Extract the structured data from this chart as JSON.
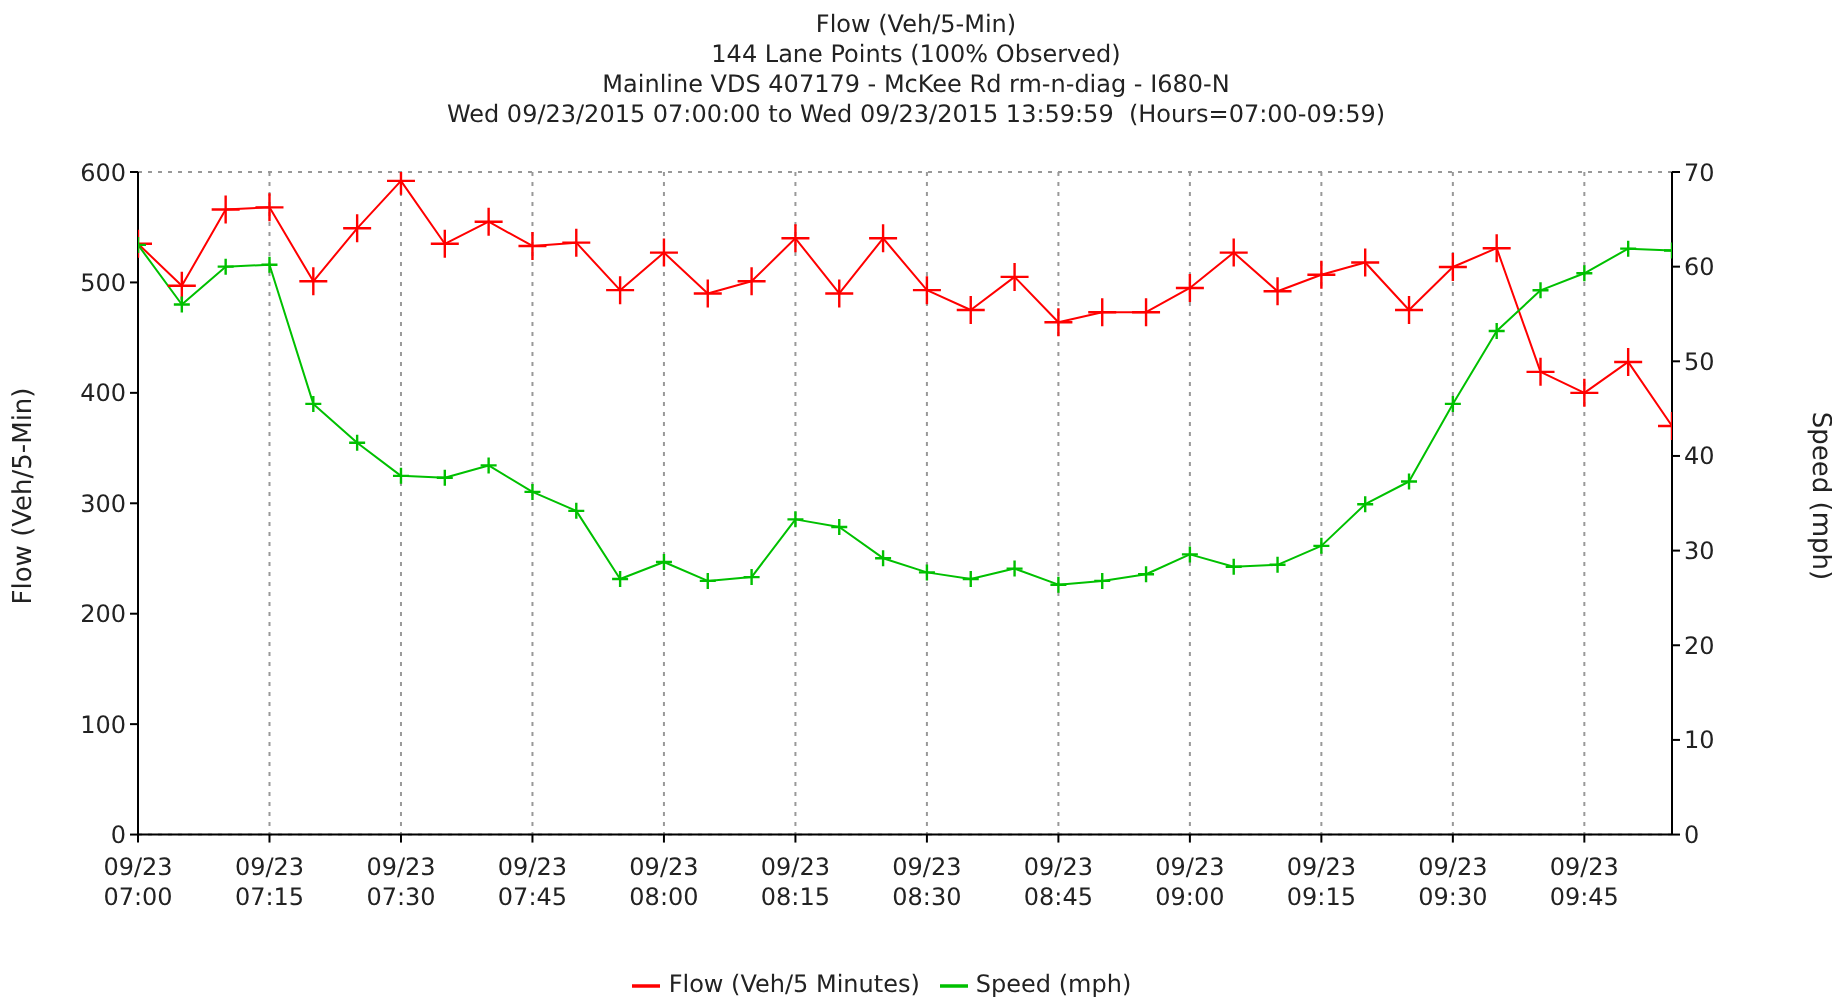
{
  "chart_data": {
    "type": "line",
    "title": "Flow (Veh/5-Min)",
    "subtitle": "144 Lane Points (100% Observed)\nMainline VDS 407179 - McKee Rd rm-n-diag - I680-N\nWed 09/23/2015 07:00:00 to Wed 09/23/2015 13:59:59  (Hours=07:00-09:59)",
    "ylabel": "Flow (Veh/5-Min)",
    "y2label": "Speed (mph)",
    "categories": [
      "09/23 07:00",
      null,
      null,
      "09/23 07:15",
      null,
      null,
      "09/23 07:30",
      null,
      null,
      "09/23 07:45",
      null,
      null,
      "09/23 08:00",
      null,
      null,
      "09/23 08:15",
      null,
      null,
      "09/23 08:30",
      null,
      null,
      "09/23 08:45",
      null,
      null,
      "09/23 09:00",
      null,
      null,
      "09/23 09:15",
      null,
      null,
      "09/23 09:30",
      null,
      null,
      "09/23 09:45",
      null,
      null
    ],
    "series": [
      {
        "name": "Flow (Veh/5 Minutes)",
        "color": "#ff0000",
        "marker": "cross",
        "values": [
          535,
          497,
          566,
          568,
          501,
          549,
          592,
          535,
          555,
          533,
          536,
          493,
          527,
          490,
          501,
          540,
          490,
          540,
          493,
          475,
          505,
          464,
          473,
          473,
          495,
          527,
          492,
          507,
          518,
          475,
          514,
          531,
          419,
          400,
          428,
          370
        ]
      },
      {
        "name": "Speed (mph)",
        "color": "#00c000",
        "marker": "cross",
        "axis": "y2",
        "values": [
          62.3,
          56,
          60,
          60.2,
          45.5,
          41.4,
          37.9,
          37.7,
          39,
          36.2,
          34.2,
          27,
          28.8,
          26.8,
          27.2,
          33.3,
          32.5,
          29.2,
          27.7,
          27,
          28.1,
          26.4,
          26.8,
          27.5,
          29.6,
          28.3,
          28.5,
          30.5,
          34.9,
          37.3,
          45.5,
          53.2,
          57.5,
          59.3,
          61.9,
          61.7
        ]
      }
    ],
    "ylim": [
      0,
      600
    ],
    "yticks": [
      0,
      100,
      200,
      300,
      400,
      500,
      600
    ],
    "y2lim": [
      0,
      70
    ],
    "y2ticks": [
      0,
      10,
      20,
      30,
      40,
      50,
      60,
      70
    ],
    "grid": true,
    "legend": "bottom",
    "line_style": "solid"
  }
}
